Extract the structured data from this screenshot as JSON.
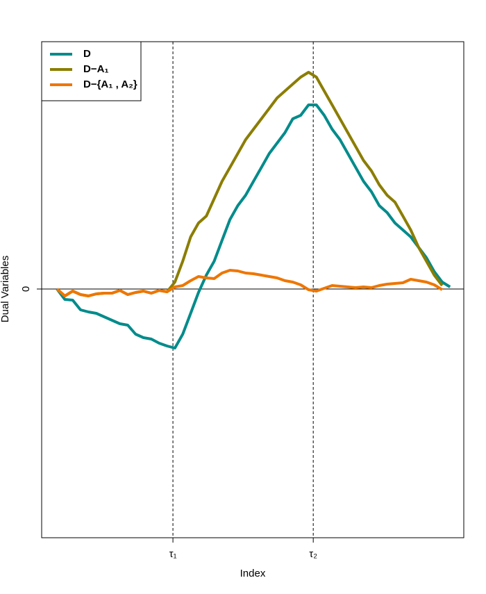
{
  "chart_data": {
    "type": "line",
    "x_label": "Index",
    "y_label": "Dual Variables",
    "x": [
      0,
      2,
      4,
      6,
      8,
      10,
      12,
      14,
      16,
      18,
      20,
      22,
      24,
      26,
      28,
      30,
      32,
      34,
      36,
      38,
      40,
      42,
      44,
      46,
      48,
      50,
      52,
      54,
      56,
      58,
      60,
      62,
      64,
      66,
      68,
      70,
      72,
      74,
      76,
      78,
      80,
      82,
      84,
      86,
      88,
      90,
      92,
      94,
      96,
      98,
      100
    ],
    "series": [
      {
        "name": "D",
        "color": "#008b8b",
        "values": [
          0,
          -1.5,
          -1.6,
          -3,
          -3.3,
          -3.5,
          -4,
          -4.5,
          -5,
          -5.2,
          -6.5,
          -7,
          -7.2,
          -7.8,
          -8.2,
          -8.5,
          -6.5,
          -3.5,
          -0.5,
          2,
          4,
          7,
          10,
          12,
          13.5,
          15.5,
          17.5,
          19.5,
          21,
          22.5,
          24.5,
          25,
          26.5,
          26.5,
          25,
          23,
          21.5,
          19.5,
          17.5,
          15.5,
          14,
          12,
          11,
          9.5,
          8.5,
          7.5,
          6,
          4.5,
          2.5,
          1,
          0.3
        ]
      },
      {
        "name": "D−A₁",
        "color": "#8b7d00",
        "values": [
          0,
          -1,
          -0.3,
          -0.8,
          -1,
          -0.7,
          -0.6,
          -0.6,
          -0.2,
          -0.8,
          -0.5,
          -0.3,
          -0.6,
          -0.2,
          -0.4,
          1,
          4,
          7.5,
          9.5,
          10.5,
          13,
          15.5,
          17.5,
          19.5,
          21.5,
          23,
          24.5,
          26,
          27.5,
          28.5,
          29.5,
          30.5,
          31.2,
          30.5,
          28.5,
          26.5,
          24.5,
          22.5,
          20.5,
          18.5,
          17,
          15,
          13.5,
          12.5,
          10.5,
          8.5,
          6,
          4,
          2,
          0.5,
          null
        ]
      },
      {
        "name": "D−{A₁ , A₂}",
        "color": "#ee7600",
        "values": [
          0,
          -1,
          -0.3,
          -0.8,
          -1,
          -0.7,
          -0.6,
          -0.6,
          -0.2,
          -0.8,
          -0.5,
          -0.3,
          -0.6,
          -0.2,
          -0.4,
          0.3,
          0.5,
          1.2,
          1.8,
          1.6,
          1.5,
          2.3,
          2.7,
          2.6,
          2.3,
          2.2,
          2,
          1.8,
          1.6,
          1.2,
          1,
          0.6,
          -0.1,
          -0.3,
          0.1,
          0.5,
          0.4,
          0.3,
          0.2,
          0.3,
          0.2,
          0.5,
          0.7,
          0.8,
          0.9,
          1.4,
          1.2,
          1,
          0.6,
          -0.1,
          null
        ]
      }
    ],
    "xlim": [
      -3.9,
      103.5
    ],
    "ylim": [
      -35.8,
      35.6
    ],
    "xticks": [
      {
        "value": 29.5,
        "label": "τ₁"
      },
      {
        "value": 65.2,
        "label": "τ₂"
      }
    ],
    "yticks": [
      0
    ],
    "grid": true,
    "legend": "top-left"
  }
}
